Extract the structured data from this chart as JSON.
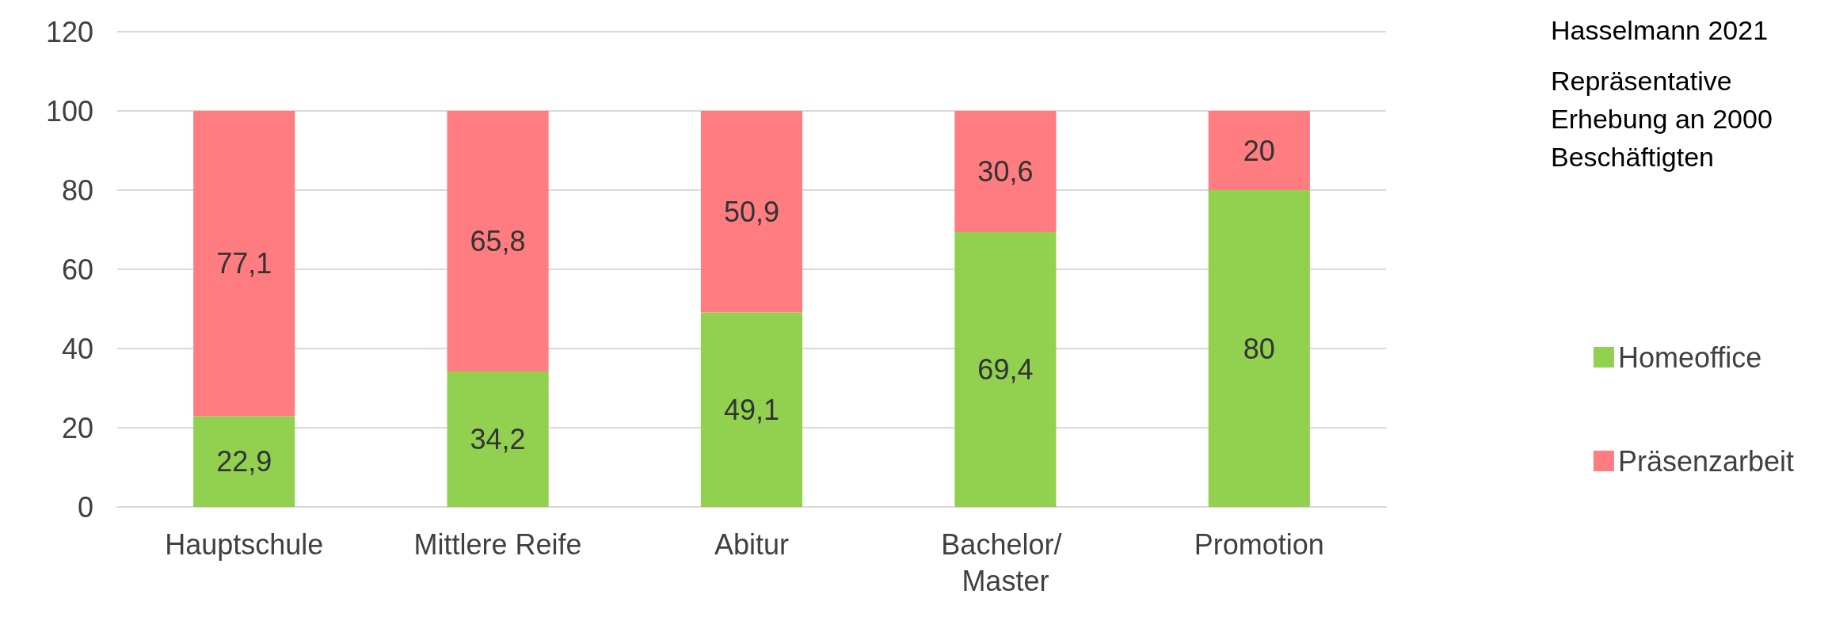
{
  "chart_data": {
    "type": "bar",
    "stacked": true,
    "categories": [
      "Hauptschule",
      "Mittlere Reife",
      "Abitur",
      "Bachelor/ Master",
      "Promotion"
    ],
    "series": [
      {
        "name": "Homeoffice",
        "color": "#92d050",
        "values": [
          22.9,
          34.2,
          49.1,
          69.4,
          80
        ],
        "value_labels": [
          "22,9",
          "34,2",
          "49,1",
          "69,4",
          "80"
        ]
      },
      {
        "name": "Präsenzarbeit",
        "color": "#ff7c80",
        "values": [
          77.1,
          65.8,
          50.9,
          30.6,
          20
        ],
        "value_labels": [
          "77,1",
          "65,8",
          "50,9",
          "30,6",
          "20"
        ]
      }
    ],
    "ylim": [
      0,
      120
    ],
    "yticks": [
      0,
      20,
      40,
      60,
      80,
      100,
      120
    ],
    "grid": "y",
    "legend": "right",
    "annotations": [
      "Hasselmann 2021",
      "Repräsentative Erhebung an 2000 Beschäftigten"
    ]
  }
}
